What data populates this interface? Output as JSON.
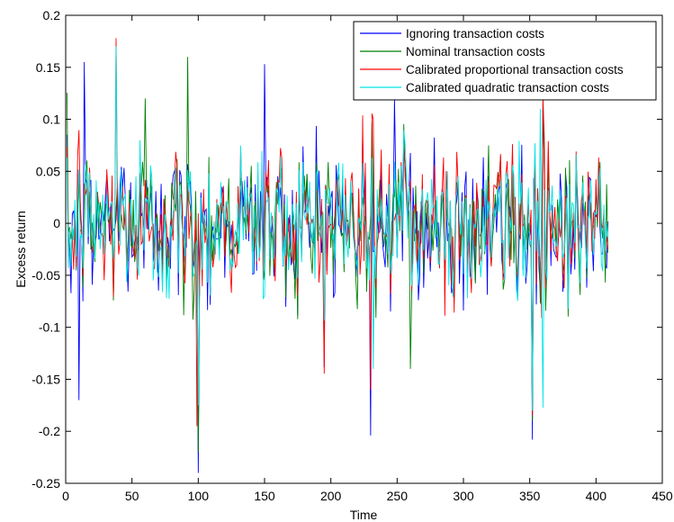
{
  "chart_data": {
    "type": "line",
    "title": "",
    "xlabel": "Time",
    "ylabel": "Excess return",
    "xlim": [
      0,
      450
    ],
    "ylim": [
      -0.25,
      0.2
    ],
    "x_ticks": [
      0,
      50,
      100,
      150,
      200,
      250,
      300,
      350,
      400,
      450
    ],
    "x_tick_labels": [
      "0",
      "50",
      "100",
      "150",
      "200",
      "250",
      "300",
      "350",
      "400",
      "450"
    ],
    "y_ticks": [
      -0.25,
      -0.2,
      -0.15,
      -0.1,
      -0.05,
      0,
      0.05,
      0.1,
      0.15,
      0.2
    ],
    "y_tick_labels": [
      "-0.25",
      "-0.2",
      "-0.15",
      "-0.1",
      "-0.05",
      "0",
      "0.05",
      "0.1",
      "0.15",
      "0.2"
    ],
    "grid": false,
    "legend_position": "top-right",
    "x_range": [
      1,
      409
    ],
    "series": [
      {
        "name": "Ignoring transaction costs",
        "color": "#0000ff",
        "highlights": [
          [
            10,
            -0.17
          ],
          [
            14,
            0.155
          ],
          [
            100,
            -0.24
          ],
          [
            150,
            0.153
          ],
          [
            230,
            -0.204
          ],
          [
            248,
            0.12
          ],
          [
            352,
            -0.208
          ],
          [
            360,
            0.115
          ]
        ]
      },
      {
        "name": "Nominal transaction costs",
        "color": "#008000",
        "highlights": [
          [
            60,
            0.12
          ],
          [
            92,
            0.16
          ],
          [
            100,
            -0.22
          ],
          [
            260,
            -0.14
          ],
          [
            352,
            -0.19
          ],
          [
            360,
            0.12
          ]
        ]
      },
      {
        "name": "Calibrated proportional transaction costs",
        "color": "#ff0000",
        "highlights": [
          [
            38,
            0.178
          ],
          [
            99,
            -0.195
          ],
          [
            230,
            -0.16
          ],
          [
            232,
            0.1
          ],
          [
            352,
            -0.185
          ],
          [
            360,
            0.12
          ]
        ]
      },
      {
        "name": "Calibrated quadratic transaction costs",
        "color": "#00e5e5",
        "highlights": [
          [
            38,
            0.17
          ],
          [
            100,
            -0.175
          ],
          [
            232,
            -0.14
          ],
          [
            352,
            -0.18
          ],
          [
            358,
            0.11
          ]
        ]
      }
    ]
  }
}
